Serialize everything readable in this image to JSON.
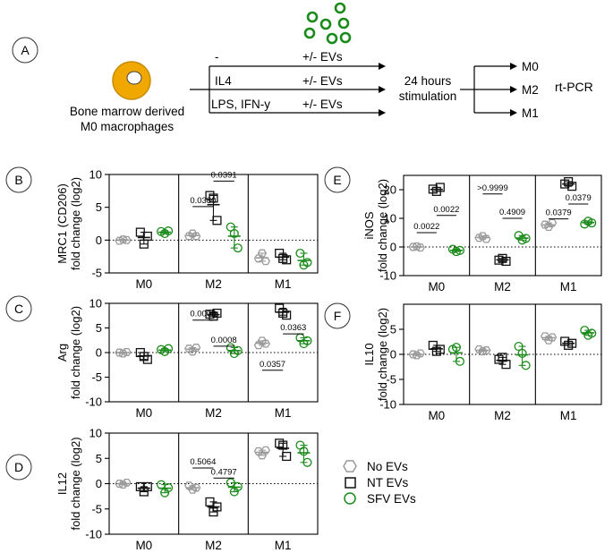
{
  "colors": {
    "none": "#9a9a9a",
    "nt": "#111111",
    "sfv": "#1a8a1a",
    "cell": "#f0a800"
  },
  "schematic": {
    "panel_label": "A",
    "cell_caption_line1": "Bone marrow derived",
    "cell_caption_line2": "M0 macrophages",
    "treatments": [
      "-",
      "IL4",
      "LPS, IFN-y"
    ],
    "ev_label": "+/- EVs",
    "time_line1": "24 hours",
    "time_line2": "stimulation",
    "outputs": [
      "M0",
      "M2",
      "M1"
    ],
    "assay": "rt-PCR"
  },
  "legend": {
    "items": [
      {
        "label": "No EVs",
        "marker": "hexagon",
        "color": "#9a9a9a"
      },
      {
        "label": "NT EVs",
        "marker": "square",
        "color": "#111111"
      },
      {
        "label": "SFV EVs",
        "marker": "circle",
        "color": "#1a8a1a"
      }
    ]
  },
  "chart_data": [
    {
      "panel": "B",
      "type": "scatter",
      "ylabel_line1": "MRC1 (CD206)",
      "ylabel_line2": "fold change (log2)",
      "ylim": [
        -5,
        10
      ],
      "yticks": [
        -5,
        0,
        5,
        10
      ],
      "baseline": 0,
      "groups": [
        "M0",
        "M2",
        "M1"
      ],
      "series": [
        "No EVs",
        "NT EVs",
        "SFV EVs"
      ],
      "points": [
        [
          [
            -0.1,
            0.1,
            0.0
          ],
          [
            1.2,
            -0.6,
            0.6
          ],
          [
            1.3,
            1.0,
            1.4
          ]
        ],
        [
          [
            0.6,
            1.0,
            0.6
          ],
          [
            6.8,
            6.4,
            3.0
          ],
          [
            2.0,
            1.0,
            -1.2
          ]
        ],
        [
          [
            -2.8,
            -2.0,
            -3.2
          ],
          [
            -2.0,
            -2.8,
            -3.0
          ],
          [
            -2.0,
            -3.8,
            -3.4
          ]
        ]
      ],
      "means": [
        [
          0.0,
          0.4,
          1.2
        ],
        [
          0.7,
          5.4,
          0.6
        ],
        [
          -2.7,
          -2.6,
          -3.1
        ]
      ],
      "pvalues": [
        {
          "label": "0.0380",
          "grp": 1,
          "from": 0,
          "to": 1,
          "y": 5.1
        },
        {
          "label": "0.0391",
          "grp": 1,
          "from": 1,
          "to": 2,
          "y": 9.0
        }
      ]
    },
    {
      "panel": "C",
      "type": "scatter",
      "ylabel_line1": "Arg",
      "ylabel_line2": "fold change (log2)",
      "ylim": [
        -10,
        10
      ],
      "yticks": [
        -10,
        -5,
        0,
        5,
        10
      ],
      "baseline": 0,
      "groups": [
        "M0",
        "M2",
        "M1"
      ],
      "series": [
        "No EVs",
        "NT EVs",
        "SFV EVs"
      ],
      "points": [
        [
          [
            0.0,
            -0.2,
            0.1
          ],
          [
            0.0,
            -0.8,
            -1.4
          ],
          [
            0.6,
            0.2,
            0.8
          ]
        ],
        [
          [
            0.8,
            0.2,
            1.0
          ],
          [
            7.8,
            7.4,
            8.0
          ],
          [
            1.0,
            -0.2,
            0.4
          ]
        ],
        [
          [
            1.5,
            2.4,
            1.8
          ],
          [
            9.0,
            8.0,
            7.6
          ],
          [
            3.0,
            1.8,
            2.4
          ]
        ]
      ],
      "means": [
        [
          0.0,
          -0.7,
          0.5
        ],
        [
          0.7,
          7.7,
          0.4
        ],
        [
          1.9,
          8.2,
          2.4
        ]
      ],
      "pvalues": [
        {
          "label": "0.0008",
          "grp": 1,
          "from": 0,
          "to": 1,
          "y": 6.6
        },
        {
          "label": "0.0008",
          "grp": 1,
          "from": 1,
          "to": 2,
          "y": 1.3
        },
        {
          "label": "0.0357",
          "grp": 2,
          "from": 0,
          "to": 1,
          "y": -3.6
        },
        {
          "label": "0.0363",
          "grp": 2,
          "from": 1,
          "to": 2,
          "y": 3.8
        }
      ]
    },
    {
      "panel": "D",
      "type": "scatter",
      "ylabel_line1": "IL12",
      "ylabel_line2": "fold change (log2)",
      "ylim": [
        -10,
        10
      ],
      "yticks": [
        -10,
        -5,
        0,
        5,
        10
      ],
      "baseline": 0,
      "groups": [
        "M0",
        "M2",
        "M1"
      ],
      "series": [
        "No EVs",
        "NT EVs",
        "SFV EVs"
      ],
      "points": [
        [
          [
            0.0,
            -0.2,
            0.2
          ],
          [
            -0.6,
            -1.6,
            -0.6
          ],
          [
            -0.2,
            -1.8,
            -0.8
          ]
        ],
        [
          [
            -0.4,
            -1.2,
            -0.8
          ],
          [
            -3.6,
            -5.6,
            -4.6
          ],
          [
            0.2,
            -1.6,
            -0.6
          ]
        ],
        [
          [
            6.4,
            5.6,
            6.6
          ],
          [
            8.0,
            7.6,
            5.4
          ],
          [
            7.6,
            6.4,
            4.2
          ]
        ]
      ],
      "means": [
        [
          0.0,
          -0.9,
          -0.9
        ],
        [
          -0.8,
          -4.6,
          -0.7
        ],
        [
          6.2,
          7.0,
          6.1
        ]
      ],
      "pvalues": [
        {
          "label": "0.5064",
          "grp": 1,
          "from": 0,
          "to": 1,
          "y": 3.1
        },
        {
          "label": "0.4797",
          "grp": 1,
          "from": 1,
          "to": 2,
          "y": 1.1
        }
      ]
    },
    {
      "panel": "E",
      "type": "scatter",
      "ylabel_line1": "iNOS",
      "ylabel_line2": "fold change (log2)",
      "ylim": [
        -10,
        25
      ],
      "yticks": [
        -10,
        0,
        10,
        20
      ],
      "baseline": 0,
      "groups": [
        "M0",
        "M2",
        "M1"
      ],
      "series": [
        "No EVs",
        "NT EVs",
        "SFV EVs"
      ],
      "points": [
        [
          [
            0.0,
            0.2,
            -0.2
          ],
          [
            20.2,
            19.4,
            20.8
          ],
          [
            -0.8,
            -1.6,
            -1.2
          ]
        ],
        [
          [
            3.2,
            3.8,
            2.8
          ],
          [
            -4.6,
            -4.0,
            -5.0
          ],
          [
            4.0,
            2.4,
            3.0
          ]
        ],
        [
          [
            7.8,
            7.0,
            8.4
          ],
          [
            22.0,
            22.8,
            21.2
          ],
          [
            8.0,
            9.0,
            8.4
          ]
        ]
      ],
      "means": [
        [
          0.0,
          20.1,
          -1.2
        ],
        [
          3.3,
          -4.5,
          3.1
        ],
        [
          7.7,
          22.0,
          8.5
        ]
      ],
      "pvalues": [
        {
          "label": "0.0022",
          "grp": 0,
          "from": 0,
          "to": 1,
          "y": 5.0
        },
        {
          "label": "0.0022",
          "grp": 0,
          "from": 1,
          "to": 2,
          "y": 11.0
        },
        {
          "label": ">0.9999",
          "grp": 1,
          "from": 0,
          "to": 1,
          "y": 18.5
        },
        {
          "label": "0.4909",
          "grp": 1,
          "from": 1,
          "to": 2,
          "y": 10.0
        },
        {
          "label": "0.0379",
          "grp": 2,
          "from": 0,
          "to": 1,
          "y": 9.8
        },
        {
          "label": "0.0379",
          "grp": 2,
          "from": 1,
          "to": 2,
          "y": 15.0
        }
      ]
    },
    {
      "panel": "F",
      "type": "scatter",
      "ylabel_line1": "IL10",
      "ylabel_line2": "fold change (log2)",
      "ylim": [
        -10,
        10
      ],
      "yticks": [
        -10,
        -5,
        0,
        5
      ],
      "baseline": 0,
      "groups": [
        "M0",
        "M2",
        "M1"
      ],
      "series": [
        "No EVs",
        "NT EVs",
        "SFV EVs"
      ],
      "points": [
        [
          [
            0.0,
            -0.2,
            0.2
          ],
          [
            1.8,
            0.6,
            1.0
          ],
          [
            1.0,
            1.4,
            -1.4
          ]
        ],
        [
          [
            1.0,
            0.6,
            0.8
          ],
          [
            -1.0,
            -0.6,
            -2.0
          ],
          [
            1.6,
            0.2,
            -2.2
          ]
        ],
        [
          [
            3.6,
            2.8,
            3.4
          ],
          [
            2.6,
            1.8,
            2.2
          ],
          [
            4.8,
            3.8,
            4.2
          ]
        ]
      ],
      "means": [
        [
          0.0,
          1.1,
          0.3
        ],
        [
          0.8,
          -1.2,
          -0.1
        ],
        [
          3.3,
          2.2,
          4.3
        ]
      ],
      "pvalues": []
    }
  ]
}
